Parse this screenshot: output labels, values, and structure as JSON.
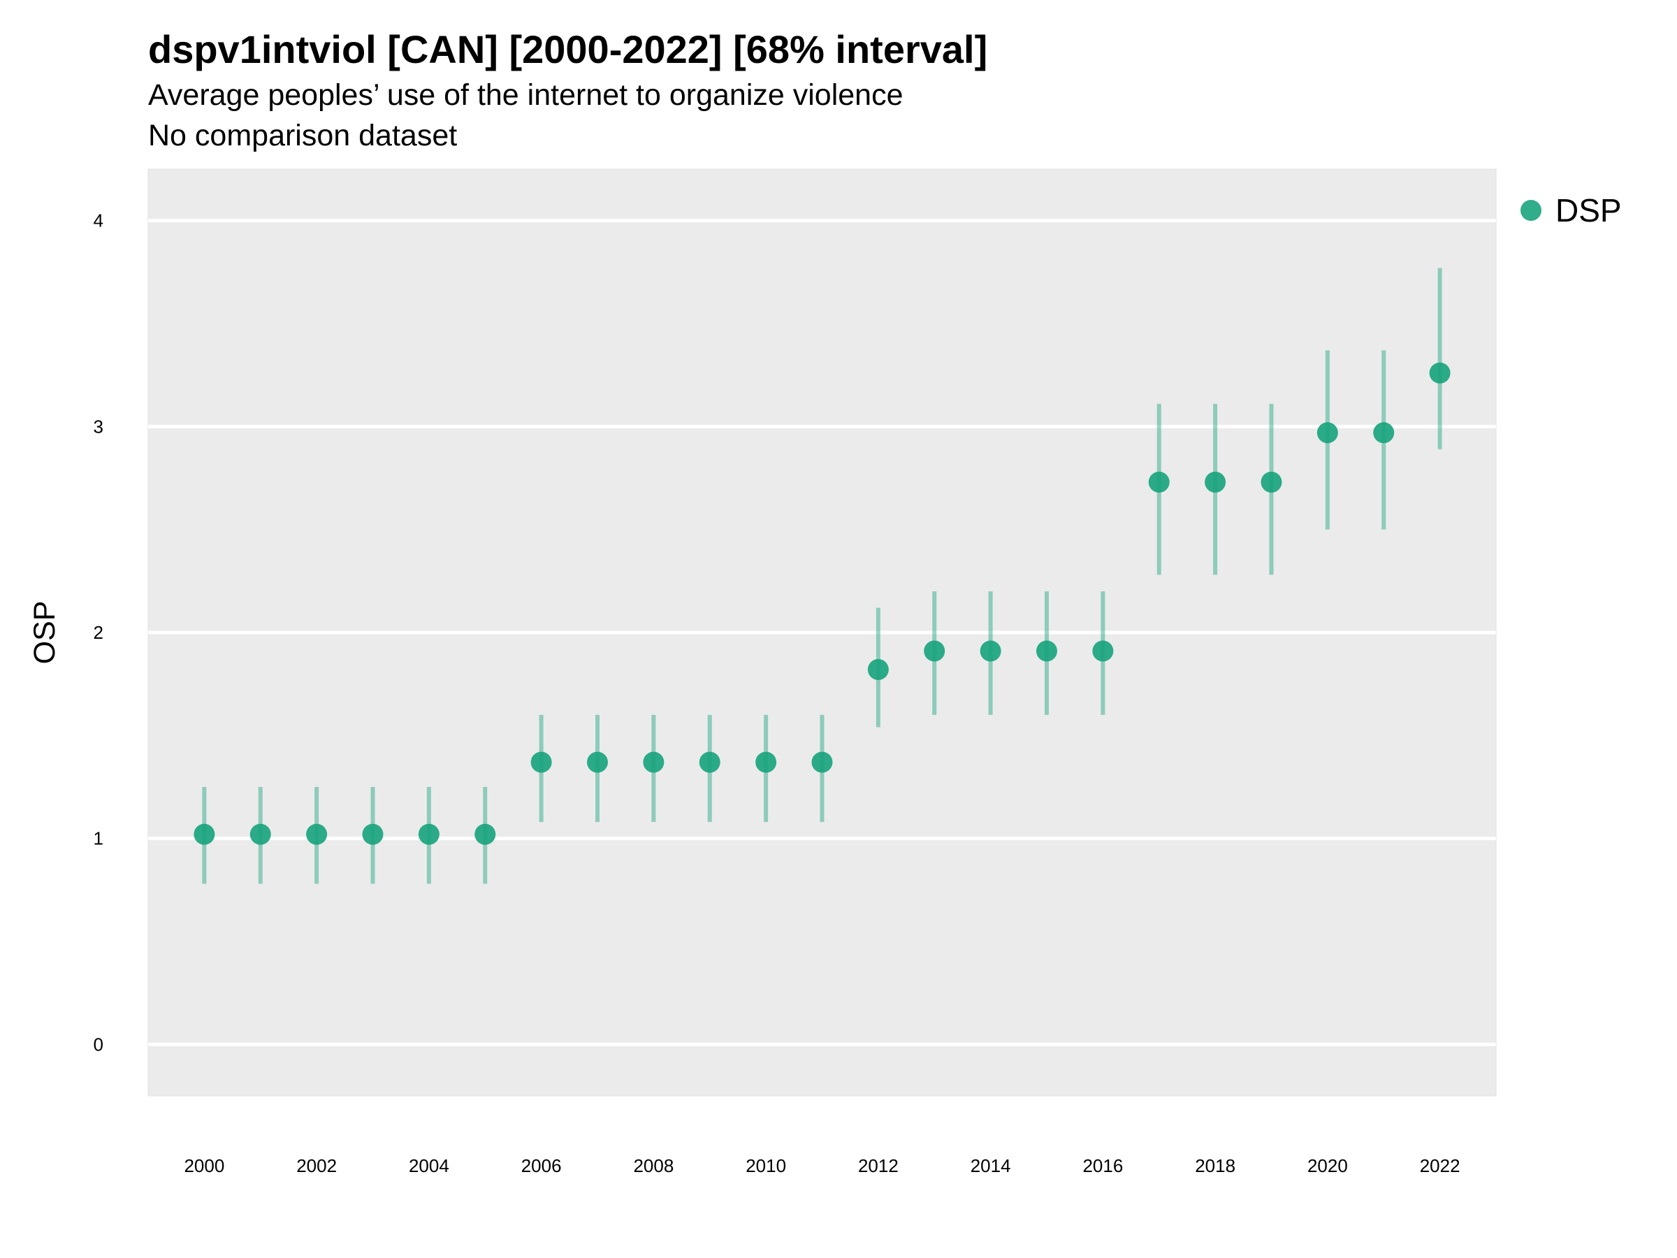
{
  "title": "dspv1intviol [CAN] [2000-2022] [68% interval]",
  "subtitle": "Average peoples’ use of the internet to organize violence",
  "subtitle2": "No comparison dataset",
  "legend": {
    "label": "DSP"
  },
  "colors": {
    "point": "#1aa47e",
    "panel": "#ebebeb",
    "grid": "#ffffff"
  },
  "chart_data": {
    "type": "scatter",
    "title": "dspv1intviol [CAN] [2000-2022] [68% interval]",
    "ylabel": "OSP",
    "xlabel": "",
    "ylim": [
      -0.25,
      4.25
    ],
    "xlim": [
      1999,
      2023
    ],
    "yticks": [
      0,
      1,
      2,
      3,
      4
    ],
    "xticks": [
      2000,
      2002,
      2004,
      2006,
      2008,
      2010,
      2012,
      2014,
      2016,
      2018,
      2020,
      2022
    ],
    "grid": true,
    "legend_position": "top-right",
    "series": [
      {
        "name": "DSP",
        "x": [
          2000,
          2001,
          2002,
          2003,
          2004,
          2005,
          2006,
          2007,
          2008,
          2009,
          2010,
          2011,
          2012,
          2013,
          2014,
          2015,
          2016,
          2017,
          2018,
          2019,
          2020,
          2021,
          2022
        ],
        "y": [
          1.02,
          1.02,
          1.02,
          1.02,
          1.02,
          1.02,
          1.37,
          1.37,
          1.37,
          1.37,
          1.37,
          1.37,
          1.82,
          1.91,
          1.91,
          1.91,
          1.91,
          2.73,
          2.73,
          2.73,
          2.97,
          2.97,
          3.26
        ],
        "lower": [
          0.78,
          0.78,
          0.78,
          0.78,
          0.78,
          0.78,
          1.08,
          1.08,
          1.08,
          1.08,
          1.08,
          1.08,
          1.54,
          1.6,
          1.6,
          1.6,
          1.6,
          2.28,
          2.28,
          2.28,
          2.5,
          2.5,
          2.89
        ],
        "upper": [
          1.25,
          1.25,
          1.25,
          1.25,
          1.25,
          1.25,
          1.6,
          1.6,
          1.6,
          1.6,
          1.6,
          1.6,
          2.12,
          2.2,
          2.2,
          2.2,
          2.2,
          3.11,
          3.11,
          3.11,
          3.37,
          3.37,
          3.77
        ]
      }
    ]
  }
}
